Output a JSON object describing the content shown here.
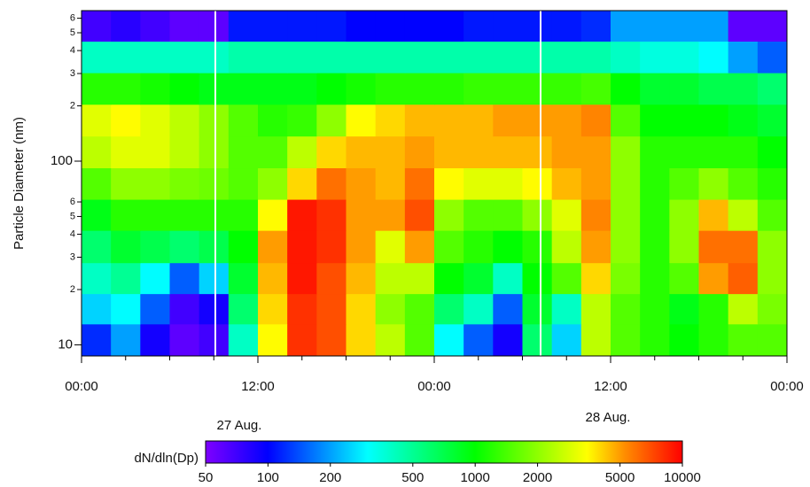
{
  "chart_data": {
    "type": "heatmap",
    "y_label": "Particle Diameter (nm)",
    "x_bins": [
      0,
      2,
      4,
      6,
      8,
      10,
      12,
      14,
      16,
      18,
      20,
      22,
      24,
      26,
      28,
      30,
      32,
      34,
      36,
      38,
      40,
      42,
      44,
      46,
      48
    ],
    "y_bins": [
      8.7,
      13,
      19,
      28,
      42,
      62,
      92,
      137,
      204,
      303,
      450,
      660
    ],
    "values": [
      [
        120,
        200,
        90,
        60,
        70,
        400,
        3500,
        8000,
        7000,
        4000,
        2500,
        1500,
        300,
        150,
        90,
        600,
        250,
        2500,
        1500,
        1200,
        1000,
        1200,
        1500,
        1500
      ],
      [
        250,
        300,
        150,
        70,
        90,
        600,
        4000,
        8000,
        7000,
        4000,
        2000,
        1500,
        600,
        400,
        150,
        800,
        400,
        2500,
        1500,
        1200,
        900,
        1200,
        2500,
        1800
      ],
      [
        400,
        500,
        300,
        150,
        250,
        800,
        4500,
        9000,
        7000,
        4500,
        2500,
        2500,
        1000,
        800,
        400,
        1000,
        1500,
        4000,
        1800,
        1200,
        1500,
        5000,
        6500,
        2000
      ],
      [
        600,
        800,
        700,
        600,
        700,
        1000,
        5000,
        9000,
        8000,
        5000,
        3000,
        5000,
        1500,
        1200,
        1000,
        1200,
        2500,
        5000,
        2000,
        1200,
        2000,
        6000,
        6000,
        2000
      ],
      [
        900,
        1200,
        1200,
        1200,
        1200,
        1200,
        3500,
        9000,
        8000,
        5000,
        5000,
        7000,
        2000,
        1500,
        1500,
        2000,
        3000,
        5500,
        2000,
        1200,
        2000,
        4500,
        2500,
        1500
      ],
      [
        1500,
        2000,
        2000,
        1800,
        1700,
        1500,
        2000,
        4000,
        6000,
        5000,
        4500,
        6000,
        3500,
        3000,
        3000,
        3500,
        4500,
        5000,
        2000,
        1200,
        1500,
        2000,
        1500,
        1200
      ],
      [
        2500,
        3000,
        3000,
        2500,
        2000,
        1500,
        1500,
        2500,
        4000,
        4500,
        4500,
        5000,
        4500,
        4500,
        4500,
        4500,
        5000,
        5000,
        2000,
        1200,
        1200,
        1200,
        1200,
        1000
      ],
      [
        3000,
        3500,
        3000,
        2500,
        2000,
        1500,
        1200,
        1300,
        2000,
        3500,
        4000,
        4500,
        4500,
        4500,
        5000,
        5000,
        5000,
        5500,
        1500,
        1000,
        1000,
        1000,
        900,
        800
      ],
      [
        1200,
        1200,
        1100,
        1000,
        900,
        900,
        900,
        900,
        1000,
        1100,
        1200,
        1200,
        1200,
        1300,
        1300,
        1300,
        1300,
        1400,
        1000,
        800,
        800,
        700,
        700,
        600
      ],
      [
        400,
        400,
        400,
        400,
        400,
        450,
        450,
        450,
        450,
        450,
        450,
        450,
        450,
        450,
        450,
        450,
        450,
        450,
        400,
        350,
        350,
        300,
        200,
        150
      ],
      [
        70,
        80,
        70,
        60,
        60,
        110,
        110,
        110,
        110,
        100,
        100,
        100,
        100,
        110,
        110,
        110,
        110,
        120,
        200,
        200,
        200,
        200,
        60,
        60
      ]
    ],
    "xlim": [
      0,
      48
    ],
    "xticks": [
      {
        "value": 0,
        "label": "00:00"
      },
      {
        "value": 12,
        "label": "12:00"
      },
      {
        "value": 24,
        "label": "00:00"
      },
      {
        "value": 36,
        "label": "12:00"
      },
      {
        "value": 48,
        "label": "00:00"
      }
    ],
    "xminorticks": [
      3,
      6,
      9,
      15,
      18,
      21,
      27,
      30,
      33,
      39,
      42,
      45
    ],
    "ylim": [
      8.7,
      660
    ],
    "ylog": true,
    "yticks": [
      10,
      {
        "value": 20,
        "label": "2"
      },
      {
        "value": 30,
        "label": "3"
      },
      {
        "value": 40,
        "label": "4"
      },
      {
        "value": 50,
        "label": "5"
      },
      {
        "value": 60,
        "label": "6"
      },
      100,
      {
        "value": 200,
        "label": "2"
      },
      {
        "value": 300,
        "label": "3"
      },
      {
        "value": 400,
        "label": "4"
      },
      {
        "value": 500,
        "label": "5"
      },
      {
        "value": 600,
        "label": "6"
      }
    ],
    "annotations": [
      "27 Aug.",
      "28 Aug."
    ],
    "colorbar": {
      "label": "dN/dln(Dp)",
      "lim": [
        50,
        10000
      ],
      "log": true,
      "ticks": [
        50,
        100,
        200,
        500,
        1000,
        2000,
        5000,
        10000
      ],
      "colorscale": [
        [
          0,
          "#7f00ff"
        ],
        [
          0.13,
          "#0000ff"
        ],
        [
          0.34,
          "#00ffff"
        ],
        [
          0.565,
          "#00ff00"
        ],
        [
          0.8,
          "#ffff00"
        ],
        [
          0.88,
          "#ff8c00"
        ],
        [
          1,
          "#ff0000"
        ]
      ]
    }
  }
}
